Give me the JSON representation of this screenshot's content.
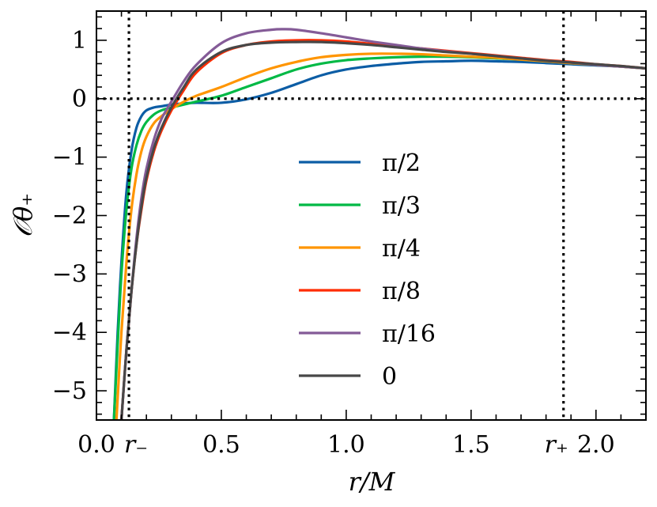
{
  "chart_data": {
    "type": "line",
    "title": "",
    "xlabel": "r/M",
    "ylabel": "𝒪θ₊",
    "xlim": [
      0.0,
      2.2
    ],
    "ylim": [
      -5.5,
      1.5
    ],
    "x_ticks": [
      0.0,
      0.5,
      1.0,
      1.5,
      2.0
    ],
    "x_tick_labels": [
      "0.0",
      "0.5",
      "1.0",
      "1.5",
      "2.0"
    ],
    "y_ticks": [
      -5,
      -4,
      -3,
      -2,
      -1,
      0,
      1
    ],
    "y_tick_labels": [
      "−5",
      "−4",
      "−3",
      "−2",
      "−1",
      "0",
      "1"
    ],
    "grid": false,
    "legend_position": "center",
    "reference_lines": [
      {
        "orientation": "vertical",
        "x": 0.13,
        "label": "r₋",
        "style": "dotted"
      },
      {
        "orientation": "vertical",
        "x": 1.87,
        "label": "r₊",
        "style": "dotted"
      },
      {
        "orientation": "horizontal",
        "y": 0.0,
        "style": "dotted"
      }
    ],
    "series": [
      {
        "name": "π/2",
        "color": "#0c5da5",
        "x": [
          0.07,
          0.085,
          0.1,
          0.12,
          0.14,
          0.16,
          0.18,
          0.2,
          0.23,
          0.26,
          0.3,
          0.35,
          0.4,
          0.5,
          0.6,
          0.7,
          0.8,
          0.9,
          1.0,
          1.1,
          1.2,
          1.3,
          1.4,
          1.5,
          1.6,
          1.7,
          1.8,
          1.9,
          2.0,
          2.1,
          2.2
        ],
        "y": [
          -5.5,
          -4.0,
          -2.8,
          -1.6,
          -0.9,
          -0.5,
          -0.3,
          -0.2,
          -0.15,
          -0.13,
          -0.1,
          -0.08,
          -0.07,
          -0.07,
          -0.01,
          0.1,
          0.25,
          0.4,
          0.5,
          0.56,
          0.6,
          0.63,
          0.64,
          0.65,
          0.64,
          0.63,
          0.61,
          0.59,
          0.57,
          0.55,
          0.52
        ]
      },
      {
        "name": "π/3",
        "color": "#00b945",
        "x": [
          0.07,
          0.085,
          0.1,
          0.12,
          0.14,
          0.16,
          0.18,
          0.2,
          0.23,
          0.26,
          0.3,
          0.35,
          0.4,
          0.5,
          0.6,
          0.7,
          0.8,
          0.9,
          1.0,
          1.1,
          1.2,
          1.3,
          1.4,
          1.5,
          1.6,
          1.7,
          1.8,
          1.9,
          2.0,
          2.1,
          2.2
        ],
        "y": [
          -5.5,
          -4.2,
          -3.0,
          -1.9,
          -1.2,
          -0.8,
          -0.55,
          -0.4,
          -0.27,
          -0.2,
          -0.15,
          -0.1,
          -0.05,
          0.05,
          0.2,
          0.35,
          0.5,
          0.6,
          0.66,
          0.69,
          0.71,
          0.72,
          0.72,
          0.71,
          0.69,
          0.67,
          0.64,
          0.61,
          0.58,
          0.55,
          0.52
        ]
      },
      {
        "name": "π/4",
        "color": "#ff9500",
        "x": [
          0.08,
          0.1,
          0.12,
          0.14,
          0.16,
          0.18,
          0.2,
          0.23,
          0.26,
          0.3,
          0.35,
          0.4,
          0.5,
          0.6,
          0.7,
          0.8,
          0.9,
          1.0,
          1.1,
          1.2,
          1.3,
          1.4,
          1.5,
          1.6,
          1.7,
          1.8,
          1.9,
          2.0,
          2.1,
          2.2
        ],
        "y": [
          -5.5,
          -4.0,
          -2.8,
          -1.9,
          -1.3,
          -0.9,
          -0.65,
          -0.42,
          -0.3,
          -0.18,
          -0.05,
          0.05,
          0.2,
          0.37,
          0.52,
          0.63,
          0.71,
          0.75,
          0.77,
          0.77,
          0.76,
          0.74,
          0.72,
          0.7,
          0.67,
          0.64,
          0.61,
          0.58,
          0.55,
          0.52
        ]
      },
      {
        "name": "π/8",
        "color": "#ff2c00",
        "x": [
          0.1,
          0.12,
          0.14,
          0.16,
          0.18,
          0.2,
          0.23,
          0.26,
          0.3,
          0.35,
          0.4,
          0.5,
          0.6,
          0.7,
          0.8,
          0.9,
          1.0,
          1.1,
          1.2,
          1.3,
          1.4,
          1.5,
          1.6,
          1.7,
          1.8,
          1.9,
          2.0,
          2.1,
          2.2
        ],
        "y": [
          -5.5,
          -4.3,
          -3.3,
          -2.5,
          -1.9,
          -1.4,
          -0.9,
          -0.55,
          -0.2,
          0.15,
          0.45,
          0.78,
          0.92,
          0.98,
          1.0,
          1.0,
          0.98,
          0.94,
          0.9,
          0.86,
          0.82,
          0.78,
          0.74,
          0.7,
          0.66,
          0.63,
          0.59,
          0.56,
          0.52
        ]
      },
      {
        "name": "π/16",
        "color": "#845b97",
        "x": [
          0.1,
          0.12,
          0.14,
          0.16,
          0.18,
          0.2,
          0.23,
          0.26,
          0.3,
          0.35,
          0.4,
          0.5,
          0.6,
          0.7,
          0.75,
          0.8,
          0.9,
          1.0,
          1.1,
          1.2,
          1.3,
          1.4,
          1.5,
          1.6,
          1.7,
          1.8,
          1.9,
          2.0,
          2.1,
          2.2
        ],
        "y": [
          -5.5,
          -4.3,
          -3.3,
          -2.4,
          -1.7,
          -1.2,
          -0.7,
          -0.35,
          -0.05,
          0.3,
          0.58,
          0.95,
          1.12,
          1.18,
          1.19,
          1.18,
          1.12,
          1.05,
          0.98,
          0.92,
          0.86,
          0.81,
          0.77,
          0.73,
          0.69,
          0.65,
          0.62,
          0.58,
          0.55,
          0.52
        ]
      },
      {
        "name": "0",
        "color": "#474747",
        "x": [
          0.1,
          0.12,
          0.14,
          0.16,
          0.18,
          0.2,
          0.23,
          0.26,
          0.3,
          0.35,
          0.4,
          0.5,
          0.6,
          0.7,
          0.8,
          0.9,
          1.0,
          1.1,
          1.2,
          1.3,
          1.4,
          1.5,
          1.6,
          1.7,
          1.8,
          1.9,
          2.0,
          2.1,
          2.2
        ],
        "y": [
          -5.5,
          -4.3,
          -3.3,
          -2.5,
          -1.85,
          -1.35,
          -0.85,
          -0.5,
          -0.15,
          0.2,
          0.5,
          0.8,
          0.92,
          0.96,
          0.97,
          0.97,
          0.95,
          0.92,
          0.88,
          0.84,
          0.8,
          0.77,
          0.73,
          0.69,
          0.65,
          0.62,
          0.59,
          0.56,
          0.52
        ]
      }
    ]
  }
}
